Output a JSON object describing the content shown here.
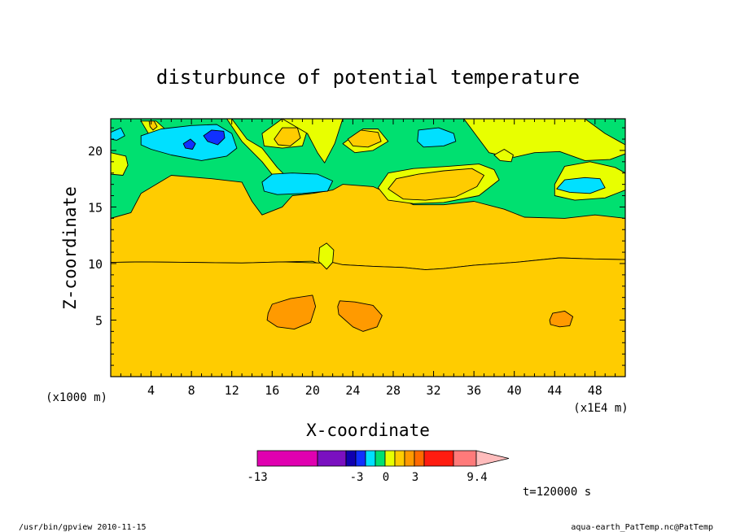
{
  "chart_data": {
    "type": "heatmap",
    "title": "disturbunce of potential temperature",
    "xlabel": "X-coordinate",
    "ylabel": "Z-coordinate",
    "x_unit_note": "(x1E4 m)",
    "z_unit_note": "(x1000 m)",
    "xlim": [
      0,
      51
    ],
    "ylim": [
      0,
      22.8
    ],
    "x_ticks": [
      "4",
      "8",
      "12",
      "16",
      "20",
      "24",
      "28",
      "32",
      "36",
      "40",
      "44",
      "48"
    ],
    "y_ticks": [
      "5",
      "10",
      "15",
      "20"
    ],
    "time_label": "t=120000 s",
    "colorbar": {
      "labels": [
        "-13",
        "-3",
        "0",
        "3",
        "9.4"
      ],
      "colors": [
        "#e000b0",
        "#7a10c0",
        "#1000b0",
        "#1030ff",
        "#00e0ff",
        "#00e070",
        "#e8ff00",
        "#ffcc00",
        "#ff9a00",
        "#ff6a00",
        "#ff1c10",
        "#ff7a7a",
        "#ffbcbc"
      ]
    },
    "background_level_color": "#ffcc00",
    "regions": [
      {
        "color": "#00e070",
        "points": [
          [
            0,
            14
          ],
          [
            2,
            14.5
          ],
          [
            3,
            16.2
          ],
          [
            6,
            17.8
          ],
          [
            10,
            17.5
          ],
          [
            13,
            17.2
          ],
          [
            14,
            15.5
          ],
          [
            15,
            14.3
          ],
          [
            17,
            15
          ],
          [
            18,
            16
          ],
          [
            20,
            16.2
          ],
          [
            22,
            16.5
          ],
          [
            23,
            17
          ],
          [
            26,
            16.8
          ],
          [
            28,
            16
          ],
          [
            30,
            15.2
          ],
          [
            33,
            15.2
          ],
          [
            36,
            15.5
          ],
          [
            39,
            14.8
          ],
          [
            41,
            14.1
          ],
          [
            45,
            14
          ],
          [
            48,
            14.3
          ],
          [
            51,
            14
          ],
          [
            51,
            22.8
          ],
          [
            0,
            22.8
          ]
        ]
      },
      {
        "color": "#e8ff00",
        "points": [
          [
            0,
            19.8
          ],
          [
            1.5,
            19.5
          ],
          [
            1.7,
            18.7
          ],
          [
            1.2,
            17.8
          ],
          [
            0,
            17.9
          ]
        ]
      },
      {
        "color": "#e8ff00",
        "points": [
          [
            3,
            22.6
          ],
          [
            4.5,
            22.6
          ],
          [
            5.5,
            21.8
          ],
          [
            5,
            21
          ],
          [
            3.8,
            21.4
          ]
        ]
      },
      {
        "color": "#e8ff00",
        "points": [
          [
            12,
            22.8
          ],
          [
            13.5,
            21
          ],
          [
            15,
            20.2
          ],
          [
            16.5,
            18.5
          ],
          [
            17.5,
            17.6
          ],
          [
            16.5,
            17.3
          ],
          [
            15,
            19
          ],
          [
            13,
            20.8
          ],
          [
            11.5,
            22.8
          ]
        ]
      },
      {
        "color": "#e8ff00",
        "points": [
          [
            15,
            21.5
          ],
          [
            17,
            22.8
          ],
          [
            18.5,
            22.8
          ],
          [
            19.5,
            21.8
          ],
          [
            19,
            20.4
          ],
          [
            17,
            20.2
          ],
          [
            15.2,
            20.4
          ]
        ]
      },
      {
        "color": "#e8ff00",
        "points": [
          [
            17,
            22.8
          ],
          [
            19.5,
            21.5
          ],
          [
            20.5,
            19.8
          ],
          [
            21.2,
            18.9
          ],
          [
            22.2,
            20.6
          ],
          [
            23,
            22.8
          ]
        ]
      },
      {
        "color": "#e8ff00",
        "points": [
          [
            23,
            20.6
          ],
          [
            25,
            21.9
          ],
          [
            26.5,
            21.9
          ],
          [
            27.5,
            20.8
          ],
          [
            26,
            20
          ],
          [
            24.2,
            19.8
          ]
        ]
      },
      {
        "color": "#e8ff00",
        "points": [
          [
            35,
            22.8
          ],
          [
            36.5,
            21
          ],
          [
            37.5,
            19.8
          ],
          [
            38.5,
            19.6
          ],
          [
            40,
            19.4
          ],
          [
            42,
            19.8
          ],
          [
            44.5,
            19.9
          ],
          [
            47,
            19.1
          ],
          [
            49.5,
            19.2
          ],
          [
            51,
            19.7
          ],
          [
            51,
            20.5
          ],
          [
            49,
            21.5
          ],
          [
            47,
            22.8
          ]
        ]
      },
      {
        "color": "#e8ff00",
        "points": [
          [
            44,
            16
          ],
          [
            44,
            17
          ],
          [
            45,
            18.6
          ],
          [
            47.5,
            19
          ],
          [
            50,
            18.5
          ],
          [
            51,
            18
          ],
          [
            51,
            16.5
          ],
          [
            49,
            15.8
          ],
          [
            46,
            15.6
          ]
        ]
      },
      {
        "color": "#e8ff00",
        "points": [
          [
            26.5,
            16.7
          ],
          [
            27.5,
            18
          ],
          [
            30,
            18.4
          ],
          [
            33.5,
            18.6
          ],
          [
            36.5,
            18.8
          ],
          [
            38,
            18.3
          ],
          [
            38.5,
            17.4
          ],
          [
            36.5,
            16
          ],
          [
            33,
            15.4
          ],
          [
            30,
            15.3
          ],
          [
            27.5,
            15.6
          ]
        ]
      },
      {
        "color": "#e8ff00",
        "points": [
          [
            38,
            19.6
          ],
          [
            39,
            20.1
          ],
          [
            39.9,
            19.6
          ],
          [
            39.7,
            19
          ],
          [
            38.6,
            19.1
          ]
        ]
      },
      {
        "color": "#00e0ff",
        "points": [
          [
            3,
            21.3
          ],
          [
            5,
            21.9
          ],
          [
            8,
            22.2
          ],
          [
            10.5,
            22.3
          ],
          [
            12,
            21.5
          ],
          [
            12.5,
            20.2
          ],
          [
            11.5,
            19.5
          ],
          [
            9,
            19.1
          ],
          [
            6,
            19.6
          ],
          [
            4,
            20.1
          ],
          [
            3,
            20.5
          ]
        ]
      },
      {
        "color": "#00e0ff",
        "points": [
          [
            0,
            21.6
          ],
          [
            1,
            22
          ],
          [
            1.4,
            21.3
          ],
          [
            0.6,
            20.9
          ],
          [
            0,
            21
          ]
        ]
      },
      {
        "color": "#00e0ff",
        "points": [
          [
            15,
            17.2
          ],
          [
            16,
            17.9
          ],
          [
            18,
            18
          ],
          [
            20.5,
            17.9
          ],
          [
            22,
            17.3
          ],
          [
            21.5,
            16.4
          ],
          [
            19,
            16.2
          ],
          [
            16.5,
            16.1
          ],
          [
            15.2,
            16.4
          ]
        ]
      },
      {
        "color": "#00e0ff",
        "points": [
          [
            30.5,
            21.8
          ],
          [
            32.5,
            22
          ],
          [
            34,
            21.5
          ],
          [
            34.2,
            20.8
          ],
          [
            33,
            20.4
          ],
          [
            31,
            20.3
          ],
          [
            30.4,
            20.8
          ]
        ]
      },
      {
        "color": "#00e0ff",
        "points": [
          [
            44.2,
            16.6
          ],
          [
            45,
            17.4
          ],
          [
            47,
            17.6
          ],
          [
            48.5,
            17.5
          ],
          [
            49,
            16.7
          ],
          [
            47.5,
            16.2
          ],
          [
            45.5,
            16.3
          ]
        ]
      },
      {
        "color": "#1030ff",
        "points": [
          [
            7.2,
            20.6
          ],
          [
            7.9,
            21.0
          ],
          [
            8.4,
            20.6
          ],
          [
            8.1,
            20.1
          ],
          [
            7.4,
            20.2
          ]
        ]
      },
      {
        "color": "#1030ff",
        "points": [
          [
            9.2,
            21.3
          ],
          [
            10,
            21.8
          ],
          [
            11.2,
            21.7
          ],
          [
            11.3,
            21.1
          ],
          [
            10.6,
            20.5
          ],
          [
            9.6,
            20.8
          ]
        ]
      },
      {
        "color": "#ffcc00",
        "points": [
          [
            16.2,
            21
          ],
          [
            17,
            22
          ],
          [
            18.5,
            22
          ],
          [
            18.8,
            21.1
          ],
          [
            17.8,
            20.4
          ],
          [
            16.6,
            20.5
          ]
        ]
      },
      {
        "color": "#ffcc00",
        "points": [
          [
            23.5,
            21
          ],
          [
            24.8,
            21.8
          ],
          [
            26.5,
            21.6
          ],
          [
            26.8,
            20.8
          ],
          [
            25.5,
            20.3
          ],
          [
            24,
            20.4
          ]
        ]
      },
      {
        "color": "#ffcc00",
        "points": [
          [
            27.5,
            16.6
          ],
          [
            28.3,
            17.5
          ],
          [
            30.5,
            17.9
          ],
          [
            33,
            18.2
          ],
          [
            35.8,
            18.4
          ],
          [
            37,
            17.8
          ],
          [
            36.3,
            16.8
          ],
          [
            34.2,
            15.9
          ],
          [
            31.2,
            15.6
          ],
          [
            29,
            15.7
          ]
        ]
      },
      {
        "color": "#ffcc00",
        "points": [
          [
            3.8,
            22.6
          ],
          [
            4.3,
            22.6
          ],
          [
            4.6,
            22.1
          ],
          [
            4.2,
            21.8
          ],
          [
            3.9,
            22.1
          ]
        ]
      },
      {
        "color": "#e8ff00",
        "points": [
          [
            0,
            0
          ],
          [
            51,
            0
          ],
          [
            51,
            10.35
          ],
          [
            48,
            10.4
          ],
          [
            44.5,
            10.5
          ],
          [
            40,
            10.1
          ],
          [
            36,
            9.85
          ],
          [
            33,
            9.55
          ],
          [
            31.2,
            9.45
          ],
          [
            29,
            9.65
          ],
          [
            26,
            9.75
          ],
          [
            23,
            9.9
          ],
          [
            21.5,
            9.65
          ],
          [
            20,
            10.2
          ],
          [
            17,
            10.15
          ],
          [
            13,
            10.05
          ],
          [
            8,
            10.1
          ],
          [
            3,
            10.15
          ],
          [
            0,
            10.1
          ]
        ]
      },
      {
        "color": "#e8ff00",
        "points": [
          [
            20.6,
            10.2
          ],
          [
            20.7,
            11.4
          ],
          [
            21.4,
            11.8
          ],
          [
            22.1,
            11.2
          ],
          [
            22,
            10.1
          ],
          [
            21.4,
            9.5
          ]
        ]
      },
      {
        "color": "#ffcc00",
        "points": [
          [
            0,
            0
          ],
          [
            51,
            0
          ],
          [
            51,
            10.35
          ],
          [
            48,
            10.4
          ],
          [
            44.5,
            10.5
          ],
          [
            40,
            10.1
          ],
          [
            36,
            9.85
          ],
          [
            33,
            9.55
          ],
          [
            31.2,
            9.45
          ],
          [
            29,
            9.65
          ],
          [
            26,
            9.75
          ],
          [
            23,
            9.9
          ],
          [
            22,
            10.1
          ],
          [
            21.4,
            9.5
          ],
          [
            20.8,
            10.05
          ],
          [
            17,
            10.15
          ],
          [
            13,
            10.05
          ],
          [
            8,
            10.1
          ],
          [
            3,
            10.15
          ],
          [
            0,
            10.1
          ]
        ]
      },
      {
        "color": "#ff9a00",
        "points": [
          [
            15.6,
            5.6
          ],
          [
            16,
            6.4
          ],
          [
            17.8,
            6.9
          ],
          [
            20,
            7.2
          ],
          [
            20.3,
            6.2
          ],
          [
            19.8,
            4.8
          ],
          [
            18.2,
            4.2
          ],
          [
            16.5,
            4.4
          ],
          [
            15.5,
            5
          ]
        ]
      },
      {
        "color": "#ff9a00",
        "points": [
          [
            22.5,
            6.2
          ],
          [
            22.7,
            6.7
          ],
          [
            24.2,
            6.6
          ],
          [
            26,
            6.3
          ],
          [
            26.9,
            5.4
          ],
          [
            26.4,
            4.4
          ],
          [
            25,
            4
          ],
          [
            24,
            4.4
          ],
          [
            22.6,
            5.5
          ]
        ]
      },
      {
        "color": "#ff9a00",
        "points": [
          [
            43.5,
            5
          ],
          [
            43.8,
            5.6
          ],
          [
            45,
            5.8
          ],
          [
            45.8,
            5.3
          ],
          [
            45.5,
            4.5
          ],
          [
            44.5,
            4.4
          ],
          [
            43.6,
            4.6
          ]
        ]
      }
    ]
  },
  "footer": {
    "left": "/usr/bin/gpview  2010-11-15",
    "right": "aqua-earth_PatTemp.nc@PatTemp"
  }
}
